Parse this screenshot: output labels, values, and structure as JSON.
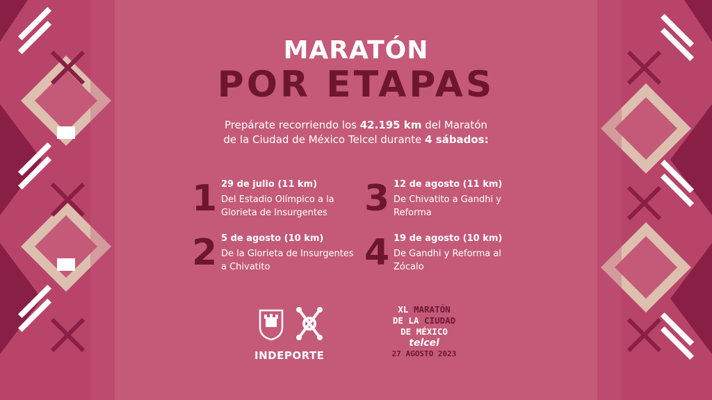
{
  "title": {
    "line1": "MARATÓN",
    "line2": "POR ETAPAS"
  },
  "intro": {
    "part1": "Prepárate recorriendo los ",
    "distance": "42.195 km",
    "part2": " del Maratón",
    "part3": "de la Ciudad de México Telcel durante ",
    "count": "4 sábados:"
  },
  "stages": [
    {
      "number": "1",
      "date": "29 de julio (11 km)",
      "desc": "Del Estadio Olímpico a la Glorieta de Insurgentes"
    },
    {
      "number": "2",
      "date": "5 de agosto (10 km)",
      "desc": "De la Glorieta de Insurgentes a Chivatito"
    },
    {
      "number": "3",
      "date": "12 de agosto (11 km)",
      "desc": "De Chivatito a Gandhi y Reforma"
    },
    {
      "number": "4",
      "date": "19 de agosto (10 km)",
      "desc": "De Gandhi y Reforma al Zócalo"
    }
  ],
  "logos": {
    "indeporte": "INDEPORTE",
    "maraton": {
      "l1a": "XL",
      "l1b": "MARATÓN",
      "l2a": "DE LA",
      "l2b": "CIUDAD",
      "l3": "DE MÉXICO",
      "sponsor": "telcel",
      "date": "27 AGOSTO 2023"
    }
  },
  "colors": {
    "background": "#c45a78",
    "dark": "#6e1630",
    "beige": "#dcbfae",
    "text": "#ffffff"
  }
}
